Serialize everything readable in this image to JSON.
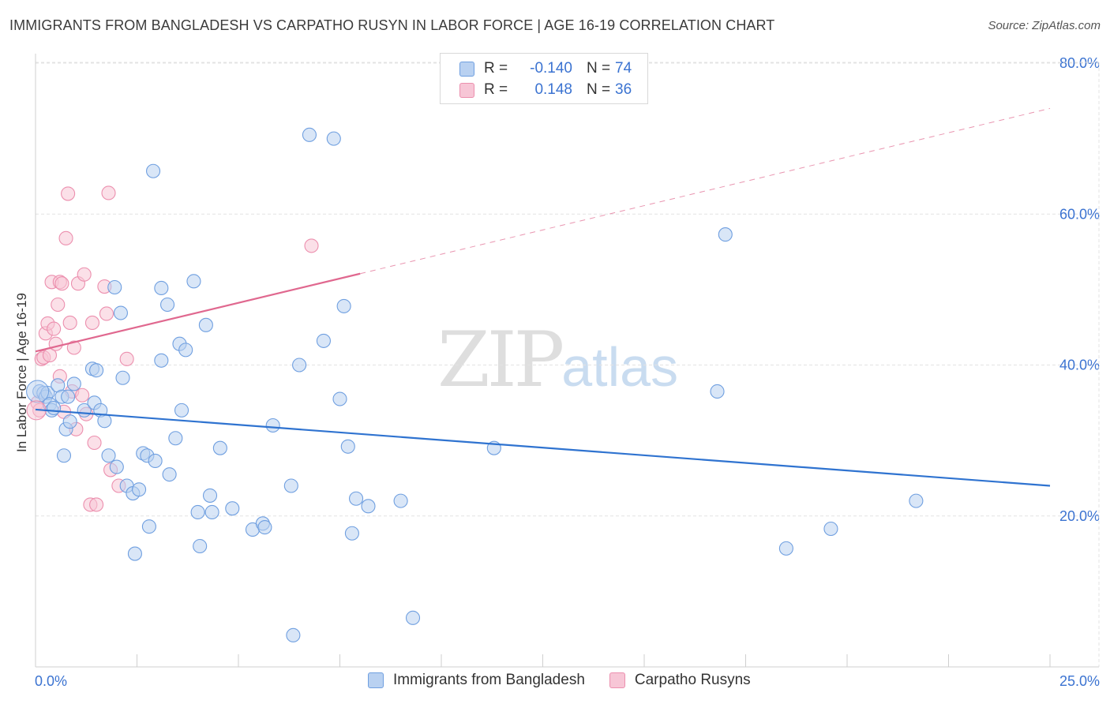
{
  "title": "IMMIGRANTS FROM BANGLADESH VS CARPATHO RUSYN IN LABOR FORCE | AGE 16-19 CORRELATION CHART",
  "source": "Source: ZipAtlas.com",
  "watermark": {
    "zip": "ZIP",
    "atlas": "atlas"
  },
  "legend": {
    "rows": [
      {
        "r_label": "R =",
        "r_value": "-0.140",
        "n_label": "N =",
        "n_value": "74"
      },
      {
        "r_label": "R =",
        "r_value": "0.148",
        "n_label": "N =",
        "n_value": "36"
      }
    ]
  },
  "colors": {
    "blue_fill": "#b9d1f1",
    "blue_stroke": "#6f9fe0",
    "blue_line": "#2f73d0",
    "pink_fill": "#f7c6d6",
    "pink_stroke": "#ec8fae",
    "pink_line": "#e0688f",
    "grid": "#e3e3e3",
    "tick_label": "#3b73d1"
  },
  "chart_data": {
    "type": "scatter",
    "title": "IMMIGRANTS FROM BANGLADESH VS CARPATHO RUSYN IN LABOR FORCE | AGE 16-19 CORRELATION CHART",
    "xlabel": "",
    "ylabel": "In Labor Force | Age 16-19",
    "xlim": [
      0,
      25
    ],
    "ylim": [
      0,
      82
    ],
    "x_tick_labels": [
      "0.0%",
      "25.0%"
    ],
    "y_ticks": [
      20,
      40,
      60,
      80
    ],
    "y_tick_labels": [
      "20.0%",
      "40.0%",
      "60.0%",
      "80.0%"
    ],
    "series": [
      {
        "name": "Immigrants from Bangladesh",
        "r": -0.14,
        "n": 74,
        "trend": {
          "x0": 0,
          "y0": 34.1,
          "x1": 25,
          "y1": 24.0,
          "dashed_from": null
        },
        "points": [
          [
            0.1,
            36.5
          ],
          [
            0.2,
            36.3
          ],
          [
            0.25,
            35.8
          ],
          [
            0.3,
            36.3
          ],
          [
            0.35,
            34.8
          ],
          [
            0.4,
            34.0
          ],
          [
            0.45,
            34.3
          ],
          [
            0.55,
            37.3
          ],
          [
            0.65,
            35.8
          ],
          [
            0.7,
            28.0
          ],
          [
            0.75,
            31.5
          ],
          [
            0.8,
            35.8
          ],
          [
            0.85,
            32.5
          ],
          [
            0.95,
            37.5
          ],
          [
            1.2,
            34.0
          ],
          [
            1.4,
            39.5
          ],
          [
            1.45,
            35.0
          ],
          [
            1.5,
            39.3
          ],
          [
            1.6,
            34.0
          ],
          [
            1.7,
            32.6
          ],
          [
            1.8,
            28.0
          ],
          [
            1.95,
            50.3
          ],
          [
            2.0,
            26.5
          ],
          [
            2.1,
            46.9
          ],
          [
            2.15,
            38.3
          ],
          [
            2.25,
            24.0
          ],
          [
            2.4,
            23.0
          ],
          [
            2.45,
            15.0
          ],
          [
            2.55,
            23.5
          ],
          [
            2.65,
            28.3
          ],
          [
            2.75,
            28.0
          ],
          [
            2.8,
            18.6
          ],
          [
            2.9,
            65.7
          ],
          [
            2.95,
            27.3
          ],
          [
            3.1,
            40.6
          ],
          [
            3.1,
            50.2
          ],
          [
            3.25,
            48.0
          ],
          [
            3.3,
            25.5
          ],
          [
            3.45,
            30.3
          ],
          [
            3.55,
            42.8
          ],
          [
            3.6,
            34.0
          ],
          [
            3.7,
            42.0
          ],
          [
            3.9,
            51.1
          ],
          [
            4.0,
            20.5
          ],
          [
            4.05,
            16.0
          ],
          [
            4.2,
            45.3
          ],
          [
            4.3,
            22.7
          ],
          [
            4.35,
            20.5
          ],
          [
            4.55,
            29.0
          ],
          [
            4.85,
            21.0
          ],
          [
            5.35,
            18.2
          ],
          [
            5.6,
            19.0
          ],
          [
            5.65,
            18.5
          ],
          [
            5.85,
            32.0
          ],
          [
            6.3,
            24.0
          ],
          [
            6.35,
            4.2
          ],
          [
            6.5,
            40.0
          ],
          [
            6.75,
            70.5
          ],
          [
            7.1,
            43.2
          ],
          [
            7.35,
            70.0
          ],
          [
            7.5,
            35.5
          ],
          [
            7.6,
            47.8
          ],
          [
            7.7,
            29.2
          ],
          [
            7.8,
            17.7
          ],
          [
            7.9,
            22.3
          ],
          [
            8.2,
            21.3
          ],
          [
            9.0,
            22.0
          ],
          [
            9.3,
            6.5
          ],
          [
            11.3,
            29.0
          ],
          [
            16.8,
            36.5
          ],
          [
            17.0,
            57.3
          ],
          [
            18.5,
            15.7
          ],
          [
            19.6,
            18.3
          ],
          [
            21.7,
            22.0
          ]
        ]
      },
      {
        "name": "Carpatho Rusyns",
        "r": 0.148,
        "n": 36,
        "trend": {
          "x0": 0,
          "y0": 41.8,
          "x1": 25,
          "y1": 74.0,
          "dashed_from": 8.0
        },
        "points": [
          [
            0.05,
            35.0
          ],
          [
            0.1,
            34.0
          ],
          [
            0.15,
            40.8
          ],
          [
            0.2,
            41.0
          ],
          [
            0.25,
            44.2
          ],
          [
            0.3,
            45.5
          ],
          [
            0.35,
            41.3
          ],
          [
            0.4,
            51.0
          ],
          [
            0.45,
            44.8
          ],
          [
            0.5,
            42.8
          ],
          [
            0.55,
            48.0
          ],
          [
            0.6,
            51.0
          ],
          [
            0.6,
            38.5
          ],
          [
            0.65,
            50.8
          ],
          [
            0.7,
            33.8
          ],
          [
            0.75,
            56.8
          ],
          [
            0.8,
            62.7
          ],
          [
            0.85,
            45.6
          ],
          [
            0.9,
            36.5
          ],
          [
            0.95,
            42.3
          ],
          [
            1.0,
            31.5
          ],
          [
            1.05,
            50.8
          ],
          [
            1.15,
            36.0
          ],
          [
            1.2,
            52.0
          ],
          [
            1.25,
            33.5
          ],
          [
            1.35,
            21.5
          ],
          [
            1.4,
            45.6
          ],
          [
            1.45,
            29.7
          ],
          [
            1.7,
            50.4
          ],
          [
            1.75,
            46.8
          ],
          [
            1.8,
            62.8
          ],
          [
            1.85,
            26.1
          ],
          [
            2.05,
            24.0
          ],
          [
            2.25,
            40.8
          ],
          [
            6.8,
            55.8
          ],
          [
            1.5,
            21.5
          ]
        ]
      }
    ]
  },
  "bottom_legend": {
    "items": [
      {
        "label": "Immigrants from Bangladesh"
      },
      {
        "label": "Carpatho Rusyns"
      }
    ]
  }
}
